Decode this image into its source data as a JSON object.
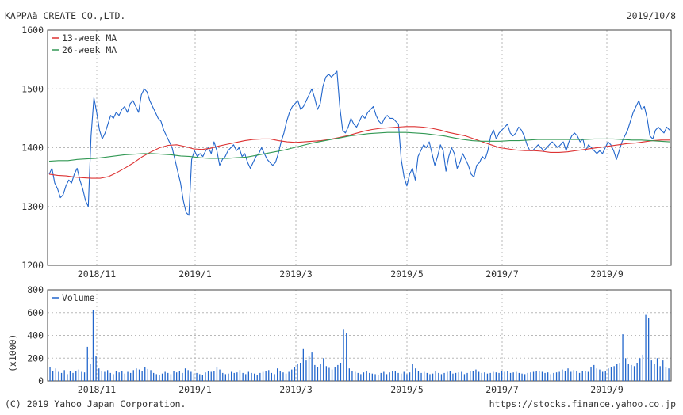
{
  "header": {
    "company": "KAPPAã CREATE CO.,LTD.",
    "date": "2019/10/8"
  },
  "footer": {
    "copyright": "(C) 2019 Yahoo Japan Corporation.",
    "url": "https://stocks.finance.yahoo.co.jp"
  },
  "colors": {
    "price": "#2266cc",
    "ma13": "#dd3333",
    "ma26": "#339955",
    "volume": "#2266cc"
  },
  "chart_data": [
    {
      "type": "line",
      "x_tick_labels": [
        "2018/11",
        "2019/1",
        "2019/3",
        "2019/5",
        "2019/7",
        "2019/9"
      ],
      "ylim": [
        1200,
        1600
      ],
      "y_ticks": [
        1200,
        1300,
        1400,
        1500,
        1600
      ],
      "grid": true,
      "legend_position": "top-left",
      "legend": [
        "13-week MA",
        "26-week MA"
      ],
      "series": [
        {
          "name": "price",
          "values": [
            1355,
            1365,
            1340,
            1330,
            1315,
            1320,
            1335,
            1345,
            1340,
            1355,
            1365,
            1345,
            1330,
            1310,
            1300,
            1420,
            1485,
            1460,
            1430,
            1415,
            1425,
            1440,
            1455,
            1450,
            1460,
            1455,
            1465,
            1470,
            1460,
            1475,
            1480,
            1470,
            1460,
            1490,
            1500,
            1495,
            1480,
            1470,
            1460,
            1450,
            1445,
            1430,
            1420,
            1410,
            1400,
            1380,
            1360,
            1340,
            1310,
            1290,
            1285,
            1380,
            1395,
            1385,
            1390,
            1385,
            1395,
            1400,
            1390,
            1410,
            1395,
            1370,
            1380,
            1385,
            1395,
            1400,
            1405,
            1395,
            1400,
            1385,
            1390,
            1375,
            1365,
            1375,
            1385,
            1390,
            1400,
            1390,
            1380,
            1375,
            1370,
            1375,
            1390,
            1410,
            1425,
            1445,
            1460,
            1470,
            1475,
            1480,
            1465,
            1470,
            1480,
            1490,
            1500,
            1485,
            1465,
            1475,
            1505,
            1520,
            1525,
            1520,
            1525,
            1530,
            1470,
            1430,
            1425,
            1435,
            1450,
            1440,
            1435,
            1445,
            1455,
            1450,
            1460,
            1465,
            1470,
            1455,
            1445,
            1440,
            1450,
            1455,
            1450,
            1450,
            1445,
            1440,
            1380,
            1350,
            1335,
            1355,
            1365,
            1345,
            1385,
            1395,
            1405,
            1400,
            1410,
            1390,
            1370,
            1385,
            1405,
            1395,
            1360,
            1385,
            1400,
            1390,
            1365,
            1375,
            1390,
            1380,
            1370,
            1355,
            1350,
            1370,
            1375,
            1385,
            1380,
            1395,
            1420,
            1430,
            1415,
            1425,
            1430,
            1435,
            1440,
            1425,
            1420,
            1425,
            1435,
            1430,
            1420,
            1405,
            1395,
            1395,
            1400,
            1405,
            1400,
            1395,
            1400,
            1405,
            1410,
            1405,
            1400,
            1405,
            1410,
            1395,
            1410,
            1420,
            1425,
            1420,
            1410,
            1415,
            1395,
            1405,
            1400,
            1395,
            1390,
            1395,
            1390,
            1400,
            1410,
            1405,
            1395,
            1380,
            1395,
            1410,
            1420,
            1430,
            1445,
            1460,
            1470,
            1480,
            1465,
            1470,
            1450,
            1420,
            1415,
            1430,
            1435,
            1430,
            1425,
            1435,
            1430
          ]
        },
        {
          "name": "13-week MA",
          "values": [
            1355,
            1353,
            1352,
            1350,
            1349,
            1348,
            1348,
            1351,
            1358,
            1366,
            1375,
            1385,
            1393,
            1400,
            1404,
            1405,
            1402,
            1398,
            1397,
            1399,
            1403,
            1406,
            1409,
            1412,
            1414,
            1415,
            1415,
            1412,
            1410,
            1409,
            1410,
            1411,
            1412,
            1414,
            1417,
            1420,
            1424,
            1428,
            1431,
            1433,
            1434,
            1435,
            1436,
            1436,
            1435,
            1433,
            1430,
            1426,
            1423,
            1420,
            1415,
            1410,
            1405,
            1400,
            1398,
            1396,
            1395,
            1395,
            1394,
            1392,
            1392,
            1393,
            1395,
            1397,
            1399,
            1401,
            1403,
            1405,
            1407,
            1408,
            1410,
            1412,
            1413,
            1413
          ]
        },
        {
          "name": "26-week MA",
          "values": [
            1377,
            1378,
            1378,
            1380,
            1381,
            1382,
            1384,
            1386,
            1388,
            1389,
            1390,
            1390,
            1389,
            1388,
            1386,
            1385,
            1383,
            1382,
            1382,
            1382,
            1383,
            1384,
            1387,
            1390,
            1393,
            1396,
            1400,
            1404,
            1408,
            1411,
            1414,
            1417,
            1420,
            1422,
            1424,
            1425,
            1426,
            1426,
            1426,
            1425,
            1424,
            1422,
            1420,
            1417,
            1414,
            1412,
            1411,
            1411,
            1411,
            1412,
            1412,
            1413,
            1414,
            1414,
            1414,
            1414,
            1414,
            1414,
            1415,
            1415,
            1415,
            1414,
            1413,
            1413,
            1412,
            1411,
            1410
          ]
        }
      ]
    },
    {
      "type": "bar",
      "x_tick_labels": [
        "2018/11",
        "2019/1",
        "2019/3",
        "2019/5",
        "2019/7",
        "2019/9"
      ],
      "ylim": [
        0,
        800
      ],
      "y_ticks": [
        0,
        200,
        400,
        600,
        800
      ],
      "ylabel": "(x1000)",
      "grid": true,
      "legend_position": "top-left",
      "legend": [
        "Volume"
      ],
      "series": [
        {
          "name": "Volume",
          "values": [
            120,
            90,
            110,
            80,
            70,
            95,
            60,
            85,
            70,
            90,
            100,
            80,
            75,
            300,
            150,
            620,
            220,
            110,
            90,
            80,
            95,
            70,
            60,
            85,
            75,
            90,
            65,
            80,
            70,
            95,
            110,
            100,
            90,
            120,
            105,
            95,
            70,
            60,
            55,
            65,
            80,
            70,
            60,
            90,
            75,
            85,
            70,
            110,
            95,
            80,
            65,
            70,
            60,
            55,
            75,
            85,
            80,
            90,
            120,
            100,
            70,
            60,
            65,
            80,
            70,
            75,
            95,
            70,
            60,
            80,
            70,
            65,
            55,
            70,
            80,
            85,
            95,
            70,
            60,
            110,
            90,
            75,
            65,
            80,
            100,
            120,
            150,
            160,
            280,
            180,
            220,
            250,
            140,
            120,
            150,
            200,
            130,
            115,
            100,
            120,
            140,
            160,
            450,
            420,
            110,
            90,
            80,
            70,
            60,
            75,
            85,
            70,
            65,
            60,
            55,
            70,
            80,
            60,
            75,
            85,
            90,
            70,
            65,
            80,
            60,
            75,
            150,
            110,
            90,
            70,
            80,
            70,
            60,
            65,
            85,
            70,
            60,
            70,
            80,
            90,
            65,
            70,
            75,
            80,
            60,
            70,
            85,
            90,
            100,
            80,
            70,
            75,
            65,
            70,
            80,
            75,
            70,
            90,
            80,
            85,
            70,
            75,
            80,
            70,
            65,
            60,
            70,
            75,
            80,
            85,
            90,
            80,
            70,
            75,
            60,
            70,
            75,
            80,
            100,
            90,
            110,
            80,
            95,
            85,
            70,
            90,
            85,
            80,
            120,
            140,
            110,
            100,
            80,
            90,
            110,
            120,
            130,
            150,
            160,
            410,
            200,
            150,
            140,
            130,
            160,
            200,
            230,
            580,
            550,
            180,
            150,
            200,
            130,
            180,
            120,
            110
          ]
        }
      ]
    }
  ]
}
